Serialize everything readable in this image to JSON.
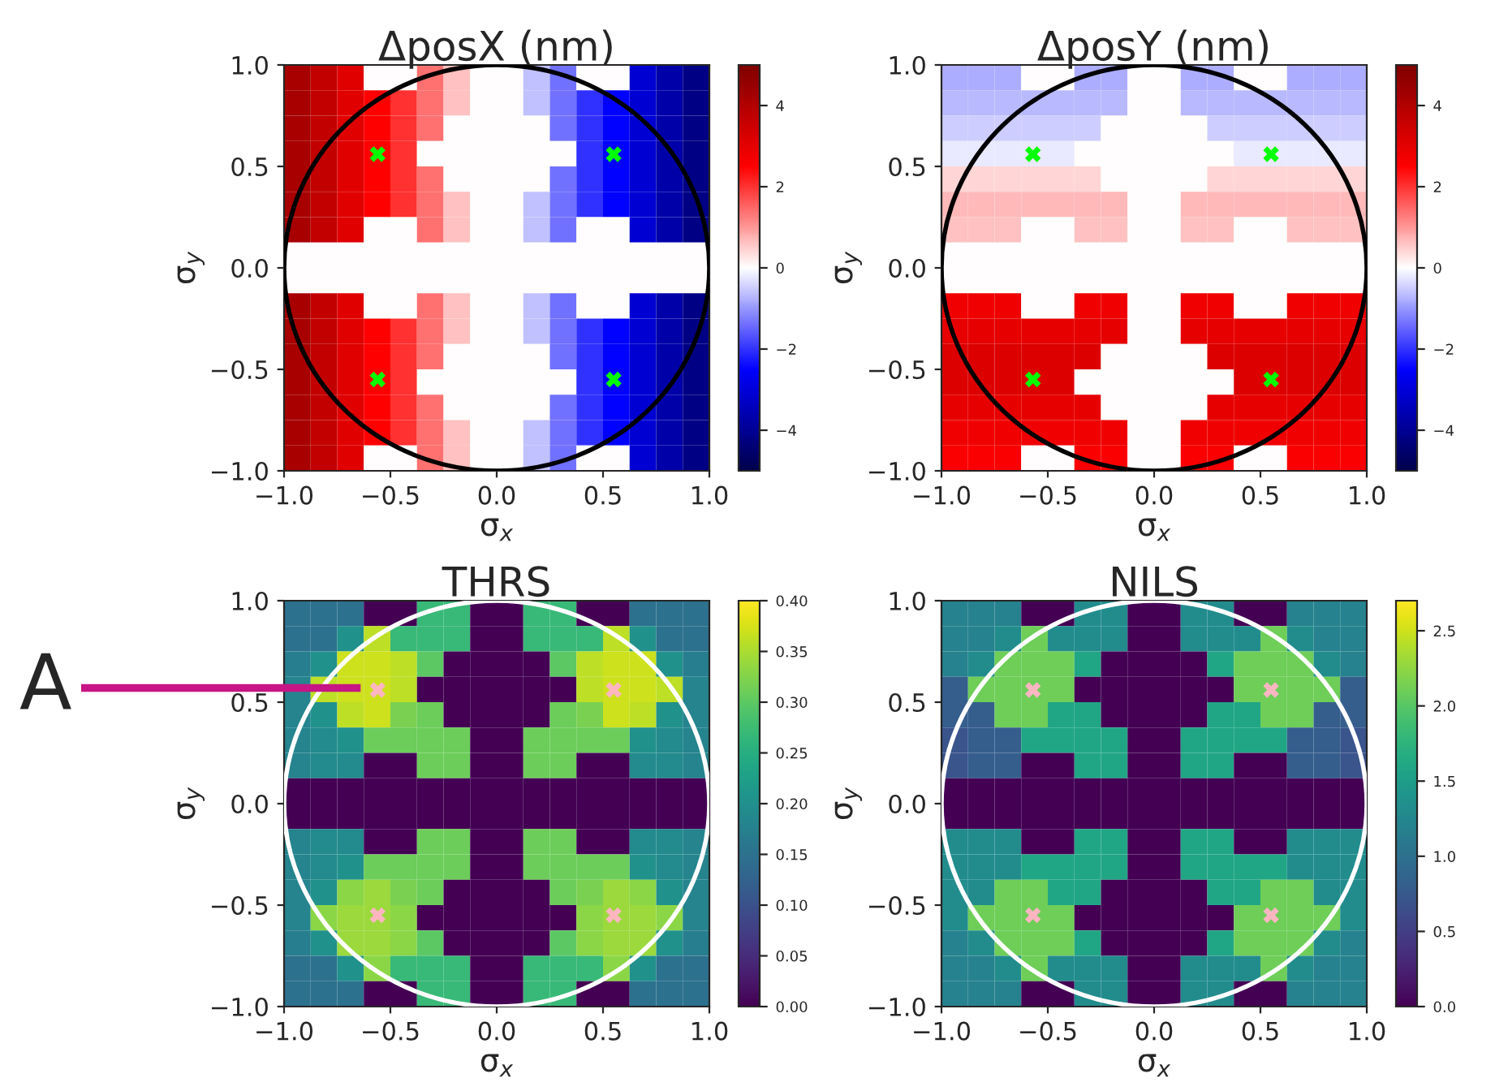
{
  "chart_data": [
    {
      "type": "heatmap",
      "title": "ΔposX (nm)",
      "xlabel": "σ$_{x}$",
      "ylabel": "σ$_{y}$",
      "x": [
        -0.9375,
        -0.8125,
        -0.6875,
        -0.5625,
        -0.4375,
        -0.3125,
        -0.1875,
        -0.0625,
        0.0625,
        0.1875,
        0.3125,
        0.4375,
        0.5625,
        0.6875,
        0.8125,
        0.9375
      ],
      "y": [
        0.9375,
        0.8125,
        0.6875,
        0.5625,
        0.4375,
        0.3125,
        0.1875,
        0.0625,
        -0.0625,
        -0.1875,
        -0.3125,
        -0.4375,
        -0.5625,
        -0.6875,
        -0.8125,
        -0.9375
      ],
      "xlim": [
        -1,
        1
      ],
      "ylim": [
        -1,
        1
      ],
      "xticks": [
        {
          "value": -1,
          "label": "−1.0"
        },
        {
          "value": -0.5,
          "label": "−0.5"
        },
        {
          "value": 0,
          "label": "0.0"
        },
        {
          "value": 0.5,
          "label": "0.5"
        },
        {
          "value": 1,
          "label": "1.0"
        }
      ],
      "yticks": [
        {
          "value": -1,
          "label": "−1.0"
        },
        {
          "value": -0.5,
          "label": "−0.5"
        },
        {
          "value": 0,
          "label": "0.0"
        },
        {
          "value": 0.5,
          "label": "0.5"
        },
        {
          "value": 1,
          "label": "1.0"
        }
      ],
      "clim": [
        -5,
        5
      ],
      "cticks": [
        {
          "value": -4,
          "label": "−4"
        },
        {
          "value": -2,
          "label": "−2"
        },
        0,
        2,
        4
      ],
      "cells": [
        [
          4.2,
          3.7,
          3.1,
          0,
          0,
          1.4,
          0.6,
          0,
          0,
          -0.6,
          -1.4,
          0,
          0,
          -3.1,
          -3.7,
          -4.2
        ],
        [
          4.2,
          3.7,
          3.1,
          2.5,
          2.0,
          1.4,
          0.6,
          0,
          0,
          -0.6,
          -1.4,
          -2.0,
          -2.5,
          -3.1,
          -3.7,
          -4.2
        ],
        [
          4.2,
          3.7,
          3.1,
          2.5,
          2.0,
          1.4,
          0,
          0,
          0,
          0,
          -1.4,
          -2.0,
          -2.5,
          -3.1,
          -3.7,
          -4.2
        ],
        [
          4.2,
          3.7,
          3.1,
          2.5,
          2.0,
          0,
          0,
          0,
          0,
          0,
          0,
          -2.0,
          -2.5,
          -3.1,
          -3.7,
          -4.2
        ],
        [
          4.2,
          3.7,
          3.1,
          2.5,
          2.0,
          1.4,
          0,
          0,
          0,
          0,
          -1.4,
          -2.0,
          -2.5,
          -3.1,
          -3.7,
          -4.2
        ],
        [
          4.2,
          3.7,
          3.1,
          2.5,
          2.0,
          1.4,
          0.6,
          0,
          0,
          -0.6,
          -1.4,
          -2.0,
          -2.5,
          -3.1,
          -3.7,
          -4.2
        ],
        [
          4.2,
          3.7,
          3.1,
          0,
          0,
          1.4,
          0.6,
          0,
          0,
          -0.6,
          -1.4,
          0,
          0,
          -3.1,
          -3.7,
          -4.2
        ],
        [
          0,
          0,
          0,
          0,
          0,
          0,
          0,
          0,
          0,
          0,
          0,
          0,
          0,
          0,
          0,
          0
        ],
        [
          0,
          0,
          0,
          0,
          0,
          0,
          0,
          0,
          0,
          0,
          0,
          0,
          0,
          0,
          0,
          0
        ],
        [
          4.2,
          3.7,
          3.1,
          0,
          0,
          1.4,
          0.6,
          0,
          0,
          -0.6,
          -1.4,
          0,
          0,
          -3.1,
          -3.7,
          -4.2
        ],
        [
          4.2,
          3.7,
          3.1,
          2.5,
          2.0,
          1.4,
          0.6,
          0,
          0,
          -0.6,
          -1.4,
          -2.0,
          -2.5,
          -3.1,
          -3.7,
          -4.2
        ],
        [
          4.2,
          3.7,
          3.1,
          2.5,
          2.0,
          1.4,
          0,
          0,
          0,
          0,
          -1.4,
          -2.0,
          -2.5,
          -3.1,
          -3.7,
          -4.2
        ],
        [
          4.2,
          3.7,
          3.1,
          2.5,
          2.0,
          0,
          0,
          0,
          0,
          0,
          0,
          -2.0,
          -2.5,
          -3.1,
          -3.7,
          -4.2
        ],
        [
          4.2,
          3.7,
          3.1,
          2.5,
          2.0,
          1.4,
          0,
          0,
          0,
          0,
          -1.4,
          -2.0,
          -2.5,
          -3.1,
          -3.7,
          -4.2
        ],
        [
          4.2,
          3.7,
          3.1,
          2.5,
          2.0,
          1.4,
          0.6,
          0,
          0,
          -0.6,
          -1.4,
          -2.0,
          -2.5,
          -3.1,
          -3.7,
          -4.2
        ],
        [
          4.2,
          3.7,
          3.1,
          0,
          0,
          1.4,
          0.6,
          0,
          0,
          -0.6,
          -1.4,
          0,
          0,
          -3.1,
          -3.7,
          -4.2
        ]
      ],
      "series": [
        {
          "type": "scatter",
          "x": [
            -0.56,
            0.55,
            -0.56,
            0.55
          ],
          "values": [
            0.56,
            0.56,
            -0.55,
            -0.55
          ],
          "color": "#00ff00",
          "marker": "cross"
        }
      ]
    },
    {
      "type": "heatmap",
      "title": "ΔposY (nm)",
      "xlabel": "σ$_{x}$",
      "ylabel": "σ$_{y}$",
      "x": [
        -0.9375,
        -0.8125,
        -0.6875,
        -0.5625,
        -0.4375,
        -0.3125,
        -0.1875,
        -0.0625,
        0.0625,
        0.1875,
        0.3125,
        0.4375,
        0.5625,
        0.6875,
        0.8125,
        0.9375
      ],
      "y": [
        0.9375,
        0.8125,
        0.6875,
        0.5625,
        0.4375,
        0.3125,
        0.1875,
        0.0625,
        -0.0625,
        -0.1875,
        -0.3125,
        -0.4375,
        -0.5625,
        -0.6875,
        -0.8125,
        -0.9375
      ],
      "xlim": [
        -1,
        1
      ],
      "ylim": [
        -1,
        1
      ],
      "xticks": [
        {
          "value": -1,
          "label": "−1.0"
        },
        {
          "value": -0.5,
          "label": "−0.5"
        },
        {
          "value": 0,
          "label": "0.0"
        },
        {
          "value": 0.5,
          "label": "0.5"
        },
        {
          "value": 1,
          "label": "1.0"
        }
      ],
      "yticks": [
        {
          "value": -1,
          "label": "−1.0"
        },
        {
          "value": -0.5,
          "label": "−0.5"
        },
        {
          "value": 0,
          "label": "0.0"
        },
        {
          "value": 0.5,
          "label": "0.5"
        },
        {
          "value": 1,
          "label": "1.0"
        }
      ],
      "clim": [
        -5,
        5
      ],
      "cticks": [
        {
          "value": -4,
          "label": "−4"
        },
        {
          "value": -2,
          "label": "−2"
        },
        0,
        2,
        4
      ],
      "cells": [
        [
          -0.8,
          -0.8,
          -0.8,
          0,
          0,
          -0.8,
          -0.8,
          0,
          0,
          -0.8,
          -0.8,
          0,
          0,
          -0.8,
          -0.8,
          -0.8
        ],
        [
          -0.7,
          -0.7,
          -0.7,
          -0.7,
          -0.7,
          -0.7,
          -0.7,
          0,
          0,
          -0.7,
          -0.7,
          -0.7,
          -0.7,
          -0.7,
          -0.7,
          -0.7
        ],
        [
          -0.5,
          -0.5,
          -0.5,
          -0.5,
          -0.5,
          -0.5,
          0,
          0,
          0,
          0,
          -0.5,
          -0.5,
          -0.5,
          -0.5,
          -0.5,
          -0.5
        ],
        [
          -0.2,
          -0.2,
          -0.2,
          -0.2,
          -0.2,
          0,
          0,
          0,
          0,
          0,
          0,
          -0.2,
          -0.2,
          -0.2,
          -0.2,
          -0.2
        ],
        [
          0.4,
          0.4,
          0.4,
          0.4,
          0.4,
          0.4,
          0,
          0,
          0,
          0,
          0.4,
          0.4,
          0.4,
          0.4,
          0.4,
          0.4
        ],
        [
          0.7,
          0.7,
          0.7,
          0.7,
          0.7,
          0.7,
          0.7,
          0,
          0,
          0.7,
          0.7,
          0.7,
          0.7,
          0.7,
          0.7,
          0.7
        ],
        [
          0.6,
          0.6,
          0.6,
          0,
          0,
          0.6,
          0.6,
          0,
          0,
          0.6,
          0.6,
          0,
          0,
          0.6,
          0.6,
          0.6
        ],
        [
          0,
          0,
          0,
          0,
          0,
          0,
          0,
          0,
          0,
          0,
          0,
          0,
          0,
          0,
          0,
          0
        ],
        [
          0,
          0,
          0,
          0,
          0,
          0,
          0,
          0,
          0,
          0,
          0,
          0,
          0,
          0,
          0,
          0
        ],
        [
          2.8,
          2.8,
          2.8,
          0,
          0,
          2.8,
          2.8,
          0,
          0,
          2.8,
          2.8,
          0,
          0,
          2.8,
          2.8,
          2.8
        ],
        [
          3.0,
          3.0,
          3.0,
          3.0,
          3.0,
          3.0,
          3.0,
          0,
          0,
          3.0,
          3.0,
          3.0,
          3.0,
          3.0,
          3.0,
          3.0
        ],
        [
          3.2,
          3.2,
          3.2,
          3.2,
          3.2,
          3.2,
          0,
          0,
          0,
          0,
          3.2,
          3.2,
          3.2,
          3.2,
          3.2,
          3.2
        ],
        [
          3.2,
          3.2,
          3.2,
          3.2,
          3.2,
          0,
          0,
          0,
          0,
          0,
          0,
          3.2,
          3.2,
          3.2,
          3.2,
          3.2
        ],
        [
          3.0,
          3.0,
          3.0,
          3.0,
          3.0,
          3.0,
          0,
          0,
          0,
          0,
          3.0,
          3.0,
          3.0,
          3.0,
          3.0,
          3.0
        ],
        [
          2.8,
          2.8,
          2.8,
          2.8,
          2.8,
          2.8,
          2.8,
          0,
          0,
          2.8,
          2.8,
          2.8,
          2.8,
          2.8,
          2.8,
          2.8
        ],
        [
          2.6,
          2.6,
          2.6,
          0,
          0,
          2.6,
          2.6,
          0,
          0,
          2.6,
          2.6,
          0,
          0,
          2.6,
          2.6,
          2.6
        ]
      ],
      "series": [
        {
          "type": "scatter",
          "x": [
            -0.57,
            0.55,
            -0.57,
            0.55
          ],
          "values": [
            0.56,
            0.56,
            -0.55,
            -0.55
          ],
          "color": "#00ff00",
          "marker": "cross"
        }
      ]
    },
    {
      "type": "heatmap",
      "title": "THRS",
      "xlabel": "σ$_{x}$",
      "ylabel": "σ$_{y}$",
      "x": [
        -0.9375,
        -0.8125,
        -0.6875,
        -0.5625,
        -0.4375,
        -0.3125,
        -0.1875,
        -0.0625,
        0.0625,
        0.1875,
        0.3125,
        0.4375,
        0.5625,
        0.6875,
        0.8125,
        0.9375
      ],
      "y": [
        0.9375,
        0.8125,
        0.6875,
        0.5625,
        0.4375,
        0.3125,
        0.1875,
        0.0625,
        -0.0625,
        -0.1875,
        -0.3125,
        -0.4375,
        -0.5625,
        -0.6875,
        -0.8125,
        -0.9375
      ],
      "xlim": [
        -1,
        1
      ],
      "ylim": [
        -1,
        1
      ],
      "xticks": [
        {
          "value": -1,
          "label": "−1.0"
        },
        {
          "value": -0.5,
          "label": "−0.5"
        },
        {
          "value": 0,
          "label": "0.0"
        },
        {
          "value": 0.5,
          "label": "0.5"
        },
        {
          "value": 1,
          "label": "1.0"
        }
      ],
      "yticks": [
        {
          "value": -1,
          "label": "−1.0"
        },
        {
          "value": -0.5,
          "label": "−0.5"
        },
        {
          "value": 0,
          "label": "0.0"
        },
        {
          "value": 0.5,
          "label": "0.5"
        },
        {
          "value": 1,
          "label": "1.0"
        }
      ],
      "clim": [
        0,
        0.4
      ],
      "cticks": [
        {
          "value": 0,
          "label": "0.00"
        },
        {
          "value": 0.05,
          "label": "0.05"
        },
        {
          "value": 0.1,
          "label": "0.10"
        },
        {
          "value": 0.15,
          "label": "0.15"
        },
        {
          "value": 0.2,
          "label": "0.20"
        },
        {
          "value": 0.25,
          "label": "0.25"
        },
        {
          "value": 0.3,
          "label": "0.30"
        },
        {
          "value": 0.35,
          "label": "0.35"
        },
        {
          "value": 0.4,
          "label": "0.40"
        }
      ],
      "cells": [
        [
          0.15,
          0.15,
          0.15,
          0,
          0,
          0.27,
          0.27,
          0,
          0,
          0.27,
          0.27,
          0,
          0,
          0.15,
          0.15,
          0.15
        ],
        [
          0.15,
          0.15,
          0.2,
          0.36,
          0.27,
          0.27,
          0.27,
          0,
          0,
          0.27,
          0.27,
          0.27,
          0.36,
          0.2,
          0.15,
          0.15
        ],
        [
          0.17,
          0.2,
          0.37,
          0.37,
          0.36,
          0.3,
          0,
          0,
          0,
          0,
          0.3,
          0.36,
          0.37,
          0.37,
          0.2,
          0.17
        ],
        [
          0.18,
          0.36,
          0.37,
          0.37,
          0.36,
          0,
          0,
          0,
          0,
          0,
          0,
          0.36,
          0.37,
          0.37,
          0.36,
          0.18
        ],
        [
          0.18,
          0.2,
          0.36,
          0.37,
          0.32,
          0.31,
          0,
          0,
          0,
          0,
          0.31,
          0.32,
          0.37,
          0.36,
          0.2,
          0.18
        ],
        [
          0.18,
          0.19,
          0.2,
          0.31,
          0.31,
          0.31,
          0.31,
          0,
          0,
          0.31,
          0.31,
          0.31,
          0.31,
          0.2,
          0.19,
          0.18
        ],
        [
          0.18,
          0.19,
          0.19,
          0,
          0,
          0.31,
          0.31,
          0,
          0,
          0.31,
          0.31,
          0,
          0,
          0.19,
          0.19,
          0.18
        ],
        [
          0,
          0,
          0,
          0,
          0,
          0,
          0,
          0,
          0,
          0,
          0,
          0,
          0,
          0,
          0,
          0
        ],
        [
          0,
          0,
          0,
          0,
          0,
          0,
          0,
          0,
          0,
          0,
          0,
          0,
          0,
          0,
          0,
          0
        ],
        [
          0.18,
          0.19,
          0.19,
          0,
          0,
          0.31,
          0.31,
          0,
          0,
          0.31,
          0.31,
          0,
          0,
          0.19,
          0.19,
          0.18
        ],
        [
          0.18,
          0.19,
          0.2,
          0.31,
          0.31,
          0.31,
          0.31,
          0,
          0,
          0.31,
          0.31,
          0.31,
          0.31,
          0.2,
          0.19,
          0.18
        ],
        [
          0.18,
          0.2,
          0.33,
          0.34,
          0.32,
          0.31,
          0,
          0,
          0,
          0,
          0.31,
          0.32,
          0.34,
          0.33,
          0.2,
          0.18
        ],
        [
          0.18,
          0.33,
          0.34,
          0.34,
          0.33,
          0,
          0,
          0,
          0,
          0,
          0,
          0.33,
          0.34,
          0.34,
          0.33,
          0.18
        ],
        [
          0.17,
          0.2,
          0.34,
          0.34,
          0.33,
          0.3,
          0,
          0,
          0,
          0,
          0.3,
          0.33,
          0.34,
          0.34,
          0.2,
          0.17
        ],
        [
          0.15,
          0.15,
          0.2,
          0.33,
          0.27,
          0.27,
          0.27,
          0,
          0,
          0.27,
          0.27,
          0.27,
          0.33,
          0.2,
          0.15,
          0.15
        ],
        [
          0.15,
          0.15,
          0.15,
          0,
          0,
          0.27,
          0.27,
          0,
          0,
          0.27,
          0.27,
          0,
          0,
          0.15,
          0.15,
          0.15
        ]
      ],
      "series": [
        {
          "type": "scatter",
          "x": [
            -0.56,
            0.55,
            -0.56,
            0.55
          ],
          "values": [
            0.56,
            0.56,
            -0.55,
            -0.55
          ],
          "color": "#ffb6c1",
          "marker": "cross"
        }
      ],
      "annotations": [
        "A"
      ]
    },
    {
      "type": "heatmap",
      "title": "NILS",
      "xlabel": "σ$_{x}$",
      "ylabel": "σ$_{y}$",
      "x": [
        -0.9375,
        -0.8125,
        -0.6875,
        -0.5625,
        -0.4375,
        -0.3125,
        -0.1875,
        -0.0625,
        0.0625,
        0.1875,
        0.3125,
        0.4375,
        0.5625,
        0.6875,
        0.8125,
        0.9375
      ],
      "y": [
        0.9375,
        0.8125,
        0.6875,
        0.5625,
        0.4375,
        0.3125,
        0.1875,
        0.0625,
        -0.0625,
        -0.1875,
        -0.3125,
        -0.4375,
        -0.5625,
        -0.6875,
        -0.8125,
        -0.9375
      ],
      "xlim": [
        -1,
        1
      ],
      "ylim": [
        -1,
        1
      ],
      "xticks": [
        {
          "value": -1,
          "label": "−1.0"
        },
        {
          "value": -0.5,
          "label": "−0.5"
        },
        {
          "value": 0,
          "label": "0.0"
        },
        {
          "value": 0.5,
          "label": "0.5"
        },
        {
          "value": 1,
          "label": "1.0"
        }
      ],
      "yticks": [
        {
          "value": -1,
          "label": "−1.0"
        },
        {
          "value": -0.5,
          "label": "−0.5"
        },
        {
          "value": 0,
          "label": "0.0"
        },
        {
          "value": 0.5,
          "label": "0.5"
        },
        {
          "value": 1,
          "label": "1.0"
        }
      ],
      "clim": [
        0,
        2.7
      ],
      "cticks": [
        {
          "value": 0,
          "label": "0.0"
        },
        {
          "value": 0.5,
          "label": "0.5"
        },
        {
          "value": 1,
          "label": "1.0"
        },
        {
          "value": 1.5,
          "label": "1.5"
        },
        {
          "value": 2,
          "label": "2.0"
        },
        {
          "value": 2.5,
          "label": "2.5"
        }
      ],
      "cells": [
        [
          1.2,
          1.2,
          1.2,
          0,
          0,
          1.3,
          1.3,
          0,
          0,
          1.3,
          1.3,
          0,
          0,
          1.2,
          1.2,
          1.2
        ],
        [
          1.2,
          1.2,
          1.3,
          2.1,
          1.3,
          1.3,
          1.3,
          0,
          0,
          1.3,
          1.3,
          1.3,
          2.1,
          1.3,
          1.2,
          1.2
        ],
        [
          1.2,
          1.3,
          2.1,
          2.1,
          2.1,
          1.6,
          0,
          0,
          0,
          0,
          1.6,
          2.1,
          2.1,
          2.1,
          1.3,
          1.2
        ],
        [
          0.8,
          2.1,
          2.1,
          2.1,
          2.1,
          0,
          0,
          0,
          0,
          0,
          0,
          2.1,
          2.1,
          2.1,
          2.1,
          0.8
        ],
        [
          0.8,
          0.8,
          2.1,
          2.1,
          1.6,
          1.6,
          0,
          0,
          0,
          0,
          1.6,
          1.6,
          2.1,
          2.1,
          0.8,
          0.8
        ],
        [
          0.7,
          0.8,
          0.8,
          1.6,
          1.6,
          1.6,
          1.6,
          0,
          0,
          1.6,
          1.6,
          1.6,
          1.6,
          0.8,
          0.8,
          0.7
        ],
        [
          0.7,
          0.8,
          0.8,
          0,
          0,
          1.6,
          1.6,
          0,
          0,
          1.6,
          1.6,
          0,
          0,
          0.8,
          0.8,
          0.7
        ],
        [
          0,
          0,
          0,
          0,
          0,
          0,
          0,
          0,
          0,
          0,
          0,
          0,
          0,
          0,
          0,
          0
        ],
        [
          0,
          0,
          0,
          0,
          0,
          0,
          0,
          0,
          0,
          0,
          0,
          0,
          0,
          0,
          0,
          0
        ],
        [
          1.3,
          1.3,
          1.3,
          0,
          0,
          1.6,
          1.6,
          0,
          0,
          1.6,
          1.6,
          0,
          0,
          1.3,
          1.3,
          1.3
        ],
        [
          1.3,
          1.3,
          1.3,
          1.6,
          1.6,
          1.6,
          1.6,
          0,
          0,
          1.6,
          1.6,
          1.6,
          1.6,
          1.3,
          1.3,
          1.3
        ],
        [
          1.3,
          1.3,
          2.1,
          2.1,
          1.6,
          1.6,
          0,
          0,
          0,
          0,
          1.6,
          1.6,
          2.1,
          2.1,
          1.3,
          1.3
        ],
        [
          1.3,
          2.1,
          2.1,
          2.1,
          2.1,
          0,
          0,
          0,
          0,
          0,
          0,
          2.1,
          2.1,
          2.1,
          2.1,
          1.3
        ],
        [
          1.2,
          1.3,
          2.1,
          2.1,
          2.1,
          1.6,
          0,
          0,
          0,
          0,
          1.6,
          2.1,
          2.1,
          2.1,
          1.3,
          1.2
        ],
        [
          1.2,
          1.2,
          1.3,
          2.1,
          1.3,
          1.3,
          1.3,
          0,
          0,
          1.3,
          1.3,
          1.3,
          2.1,
          1.3,
          1.2,
          1.2
        ],
        [
          1.2,
          1.2,
          1.2,
          0,
          0,
          1.3,
          1.3,
          0,
          0,
          1.3,
          1.3,
          0,
          0,
          1.2,
          1.2,
          1.2
        ]
      ],
      "series": [
        {
          "type": "scatter",
          "x": [
            -0.57,
            0.55,
            -0.57,
            0.55
          ],
          "values": [
            0.56,
            0.56,
            -0.55,
            -0.55
          ],
          "color": "#ffb6c1",
          "marker": "cross"
        }
      ]
    }
  ]
}
